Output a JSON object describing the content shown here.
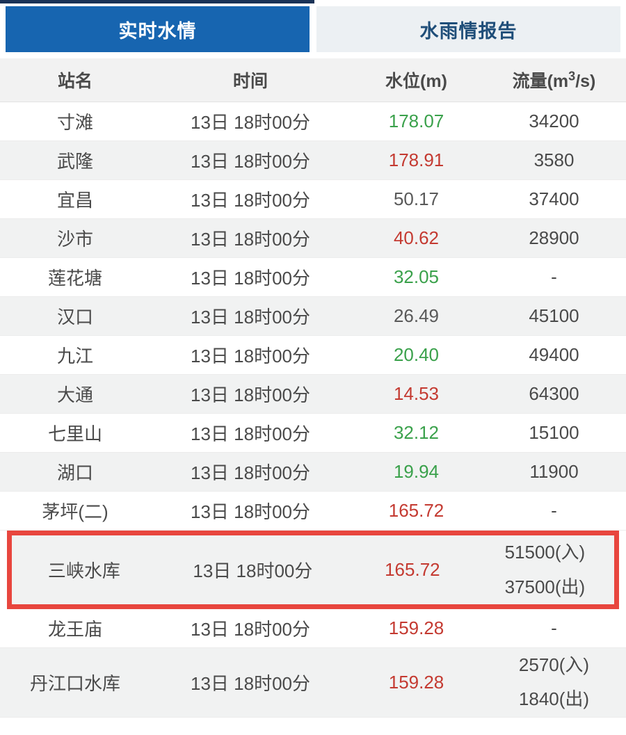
{
  "colors": {
    "tab-blue": "#1765b0",
    "tab-top-stripe": "#1a3357",
    "inactive-tab-bg": "#ecf0f3",
    "inactive-tab-text": "#1f4e79",
    "header-bg": "#f2f2f2",
    "row-alt-bg": "#f1f2f2",
    "green": "#3aa14b",
    "red": "#c43a31",
    "neutral": "#595959",
    "text": "#4a4a4a",
    "highlight-border": "#e8463e"
  },
  "tabs": [
    {
      "label": "实时水情",
      "active": true
    },
    {
      "label": "水雨情报告",
      "active": false
    }
  ],
  "header": {
    "station": "站名",
    "time": "时间",
    "level": "水位(m)",
    "flow_prefix": "流量(m",
    "flow_sup": "3",
    "flow_suffix": "/s)"
  },
  "table": {
    "rows": [
      {
        "station": "寸滩",
        "time": "13日 18时00分",
        "level": "178.07",
        "level_color": "green",
        "flow": [
          "34200"
        ],
        "highlight": false
      },
      {
        "station": "武隆",
        "time": "13日 18时00分",
        "level": "178.91",
        "level_color": "red",
        "flow": [
          "3580"
        ],
        "highlight": false
      },
      {
        "station": "宜昌",
        "time": "13日 18时00分",
        "level": "50.17",
        "level_color": "neutral",
        "flow": [
          "37400"
        ],
        "highlight": false
      },
      {
        "station": "沙市",
        "time": "13日 18时00分",
        "level": "40.62",
        "level_color": "red",
        "flow": [
          "28900"
        ],
        "highlight": false
      },
      {
        "station": "莲花塘",
        "time": "13日 18时00分",
        "level": "32.05",
        "level_color": "green",
        "flow": [
          "-"
        ],
        "highlight": false
      },
      {
        "station": "汉口",
        "time": "13日 18时00分",
        "level": "26.49",
        "level_color": "neutral",
        "flow": [
          "45100"
        ],
        "highlight": false
      },
      {
        "station": "九江",
        "time": "13日 18时00分",
        "level": "20.40",
        "level_color": "green",
        "flow": [
          "49400"
        ],
        "highlight": false
      },
      {
        "station": "大通",
        "time": "13日 18时00分",
        "level": "14.53",
        "level_color": "red",
        "flow": [
          "64300"
        ],
        "highlight": false
      },
      {
        "station": "七里山",
        "time": "13日 18时00分",
        "level": "32.12",
        "level_color": "green",
        "flow": [
          "15100"
        ],
        "highlight": false
      },
      {
        "station": "湖口",
        "time": "13日 18时00分",
        "level": "19.94",
        "level_color": "green",
        "flow": [
          "11900"
        ],
        "highlight": false
      },
      {
        "station": "茅坪(二)",
        "time": "13日 18时00分",
        "level": "165.72",
        "level_color": "red",
        "flow": [
          "-"
        ],
        "highlight": false
      },
      {
        "station": "三峡水库",
        "time": "13日 18时00分",
        "level": "165.72",
        "level_color": "red",
        "flow": [
          "51500(入)",
          "37500(出)"
        ],
        "highlight": true
      },
      {
        "station": "龙王庙",
        "time": "13日 18时00分",
        "level": "159.28",
        "level_color": "red",
        "flow": [
          "-"
        ],
        "highlight": false
      },
      {
        "station": "丹江口水库",
        "time": "13日 18时00分",
        "level": "159.28",
        "level_color": "red",
        "flow": [
          "2570(入)",
          "1840(出)"
        ],
        "highlight": false
      }
    ]
  }
}
